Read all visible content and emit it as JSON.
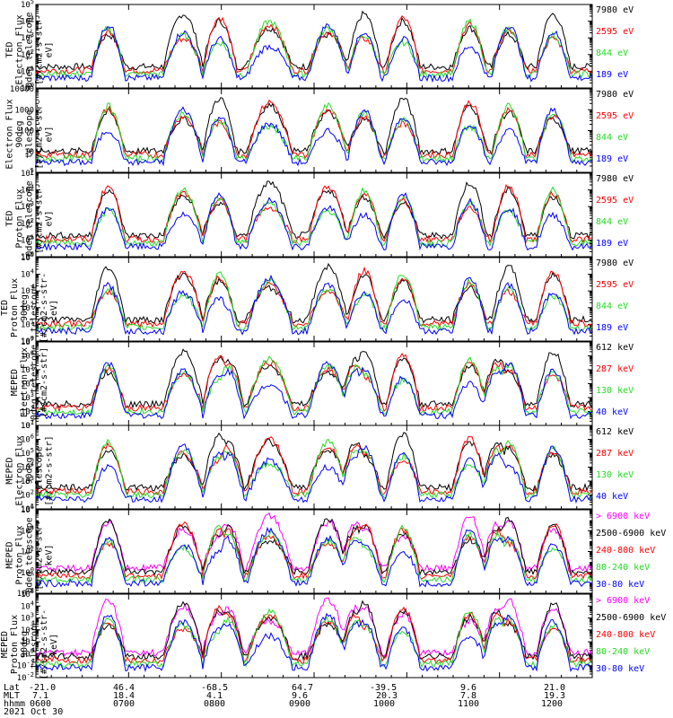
{
  "colors": {
    "black": "#000000",
    "red": "#ff0000",
    "green": "#22dd22",
    "blue": "#0000ff",
    "magenta": "#ff00ff"
  },
  "footer": {
    "row_labels": [
      "Lat",
      "MLT",
      "hhmm",
      "2021 Oct 30"
    ],
    "columns": [
      {
        "lat": "-21.0",
        "mlt": "7.1",
        "time": "0600"
      },
      {
        "lat": "46.4",
        "mlt": "18.4",
        "time": "0700"
      },
      {
        "lat": "-68.5",
        "mlt": "4.1",
        "time": "0800"
      },
      {
        "lat": "64.7",
        "mlt": "9.6",
        "time": "0900"
      },
      {
        "lat": "-39.5",
        "mlt": "20.3",
        "time": "1000"
      },
      {
        "lat": "9.6",
        "mlt": "7.8",
        "time": "1100"
      },
      {
        "lat": "21.0",
        "mlt": "19.3",
        "time": "1200"
      }
    ]
  },
  "chart_data": [
    {
      "type": "line",
      "ylabel": [
        "TED",
        "Electron Flux",
        "0deg telescope",
        "[#/cm2-s-str-eV]"
      ],
      "yscale": "log",
      "ylim": [
        1,
        100000
      ],
      "yticks": [
        {
          "value": 1,
          "base": "10",
          "exp": "0"
        },
        {
          "value": 10,
          "base": "10",
          "exp": "1"
        },
        {
          "value": 100,
          "base": "10",
          "exp": "2"
        },
        {
          "value": 1000,
          "base": "10",
          "exp": "3"
        },
        {
          "value": 10000,
          "base": "10",
          "exp": "4"
        },
        {
          "value": 100000,
          "base": "10",
          "exp": "5"
        }
      ],
      "series": [
        {
          "name": "7980 eV",
          "color": "black"
        },
        {
          "name": "2595 eV",
          "color": "red"
        },
        {
          "name": "844 eV",
          "color": "green"
        },
        {
          "name": "189 eV",
          "color": "blue"
        }
      ]
    },
    {
      "type": "line",
      "ylabel": [
        "Electron Flux",
        "90deg telescope",
        "[#/cm2-s-str-eV]"
      ],
      "yscale": "log",
      "ylim": [
        1,
        10000
      ],
      "yticks": [
        {
          "value": 1,
          "base": "1",
          "exp": ""
        },
        {
          "value": 10,
          "base": "10",
          "exp": ""
        },
        {
          "value": 100,
          "base": "100",
          "exp": ""
        },
        {
          "value": 1000,
          "base": "1000",
          "exp": ""
        },
        {
          "value": 10000,
          "base": "10000",
          "exp": ""
        }
      ],
      "series": [
        {
          "name": "7980 eV",
          "color": "black"
        },
        {
          "name": "2595 eV",
          "color": "red"
        },
        {
          "name": "844 eV",
          "color": "green"
        },
        {
          "name": "189 eV",
          "color": "blue"
        }
      ]
    },
    {
      "type": "line",
      "ylabel": [
        "TED",
        "Proton Flux",
        "0deg telescope",
        "[#/cm2-s-str-eV]"
      ],
      "yscale": "log",
      "ylim": [
        1,
        100000
      ],
      "yticks": [
        {
          "value": 1,
          "base": "10",
          "exp": "0"
        },
        {
          "value": 10,
          "base": "10",
          "exp": "1"
        },
        {
          "value": 100,
          "base": "10",
          "exp": "2"
        },
        {
          "value": 1000,
          "base": "10",
          "exp": "3"
        },
        {
          "value": 10000,
          "base": "10",
          "exp": "4"
        },
        {
          "value": 100000,
          "base": "10",
          "exp": "5"
        }
      ],
      "series": [
        {
          "name": "7980 eV",
          "color": "black"
        },
        {
          "name": "2595 eV",
          "color": "red"
        },
        {
          "name": "844 eV",
          "color": "green"
        },
        {
          "name": "189 eV",
          "color": "blue"
        }
      ]
    },
    {
      "type": "line",
      "ylabel": [
        "TED",
        "Proton Flux",
        "90deg telescope",
        "[#/cm2-s-str-eV]"
      ],
      "yscale": "log",
      "ylim": [
        1,
        100000
      ],
      "yticks": [
        {
          "value": 1,
          "base": "10",
          "exp": "0"
        },
        {
          "value": 10,
          "base": "10",
          "exp": "1"
        },
        {
          "value": 100,
          "base": "10",
          "exp": "2"
        },
        {
          "value": 1000,
          "base": "10",
          "exp": "3"
        },
        {
          "value": 10000,
          "base": "10",
          "exp": "4"
        },
        {
          "value": 100000,
          "base": "10",
          "exp": "5"
        }
      ],
      "series": [
        {
          "name": "7980 eV",
          "color": "black"
        },
        {
          "name": "2595 eV",
          "color": "red"
        },
        {
          "name": "844 eV",
          "color": "green"
        },
        {
          "name": "189 eV",
          "color": "blue"
        }
      ]
    },
    {
      "type": "line",
      "ylabel": [
        "MEPED",
        "Electron Flux",
        "0deg telescope",
        "[#/cm2-s-str]"
      ],
      "yscale": "log",
      "ylim": [
        10,
        10000000
      ],
      "yticks": [
        {
          "value": 10,
          "base": "10",
          "exp": "1"
        },
        {
          "value": 100,
          "base": "10",
          "exp": "2"
        },
        {
          "value": 1000,
          "base": "10",
          "exp": "3"
        },
        {
          "value": 10000,
          "base": "10",
          "exp": "4"
        },
        {
          "value": 100000,
          "base": "10",
          "exp": "5"
        },
        {
          "value": 1000000,
          "base": "10",
          "exp": "6"
        },
        {
          "value": 10000000,
          "base": "10",
          "exp": "7"
        }
      ],
      "series": [
        {
          "name": "612 keV",
          "color": "black"
        },
        {
          "name": "287 keV",
          "color": "red"
        },
        {
          "name": "130 keV",
          "color": "green"
        },
        {
          "name": "40 keV",
          "color": "blue"
        }
      ]
    },
    {
      "type": "line",
      "ylabel": [
        "MEPED",
        "Electron Flux",
        "90deg telescope",
        "[#/cm2-s-str]"
      ],
      "yscale": "log",
      "ylim": [
        10,
        10000000
      ],
      "yticks": [
        {
          "value": 10,
          "base": "10",
          "exp": "1"
        },
        {
          "value": 100,
          "base": "10",
          "exp": "2"
        },
        {
          "value": 1000,
          "base": "10",
          "exp": "3"
        },
        {
          "value": 10000,
          "base": "10",
          "exp": "4"
        },
        {
          "value": 100000,
          "base": "10",
          "exp": "5"
        },
        {
          "value": 1000000,
          "base": "10",
          "exp": "6"
        },
        {
          "value": 10000000,
          "base": "10",
          "exp": "7"
        }
      ],
      "series": [
        {
          "name": "612 keV",
          "color": "black"
        },
        {
          "name": "287 keV",
          "color": "red"
        },
        {
          "name": "130 keV",
          "color": "green"
        },
        {
          "name": "40 keV",
          "color": "blue"
        }
      ]
    },
    {
      "type": "line",
      "ylabel": [
        "MEPED",
        "Proton Flux",
        "0deg telescope",
        "[#/cm2-s-str-keV]"
      ],
      "yscale": "log",
      "ylim": [
        0.01,
        1000000
      ],
      "yticks": [
        {
          "value": 0.01,
          "base": "10",
          "exp": "-2"
        },
        {
          "value": 1,
          "base": "10",
          "exp": "0"
        },
        {
          "value": 100,
          "base": "10",
          "exp": "2"
        },
        {
          "value": 10000,
          "base": "10",
          "exp": "4"
        },
        {
          "value": 1000000,
          "base": "10",
          "exp": "6"
        }
      ],
      "series": [
        {
          "name": "> 6900 keV",
          "color": "magenta"
        },
        {
          "name": "2500-6900 keV",
          "color": "black"
        },
        {
          "name": "240-800 keV",
          "color": "red"
        },
        {
          "name": "80-240 keV",
          "color": "green"
        },
        {
          "name": "30-80 keV",
          "color": "blue"
        }
      ]
    },
    {
      "type": "line",
      "ylabel": [
        "MEPED",
        "Proton Flux",
        "90deg telescope",
        "[#/cm2-s-str-keV]"
      ],
      "yscale": "log",
      "ylim": [
        0.01,
        100000
      ],
      "yticks": [
        {
          "value": 0.01,
          "base": "10",
          "exp": "-2"
        },
        {
          "value": 0.1,
          "base": "10",
          "exp": "-1"
        },
        {
          "value": 1,
          "base": "10",
          "exp": "0"
        },
        {
          "value": 10,
          "base": "10",
          "exp": "1"
        },
        {
          "value": 100,
          "base": "10",
          "exp": "2"
        },
        {
          "value": 1000,
          "base": "10",
          "exp": "3"
        },
        {
          "value": 10000,
          "base": "10",
          "exp": "4"
        },
        {
          "value": 100000,
          "base": "10",
          "exp": "5"
        }
      ],
      "series": [
        {
          "name": "> 6900 keV",
          "color": "magenta"
        },
        {
          "name": "2500-6900 keV",
          "color": "black"
        },
        {
          "name": "240-800 keV",
          "color": "red"
        },
        {
          "name": "80-240 keV",
          "color": "green"
        },
        {
          "name": "30-80 keV",
          "color": "blue"
        }
      ]
    }
  ]
}
